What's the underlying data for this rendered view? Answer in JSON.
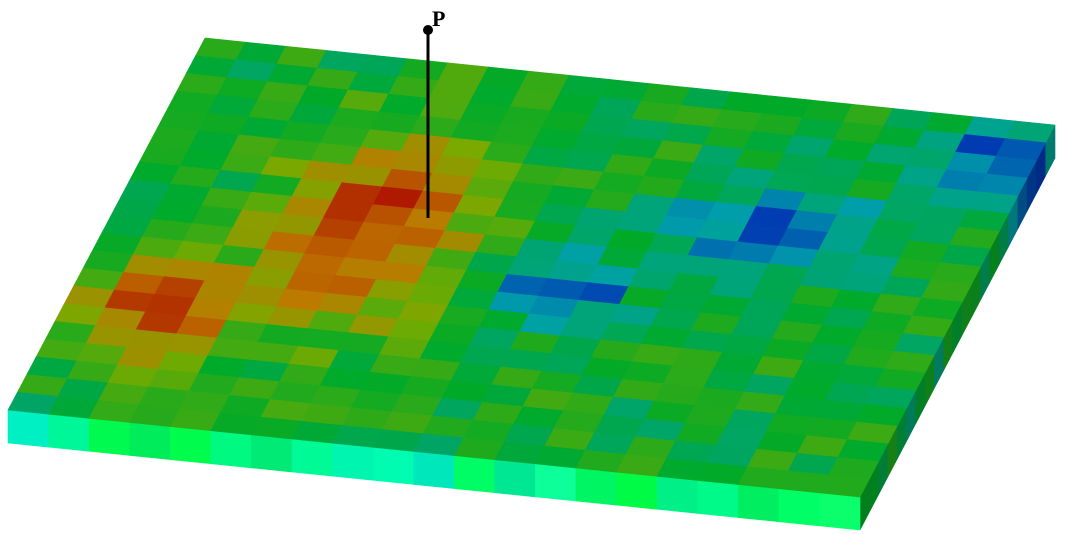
{
  "marker": {
    "label": "P"
  }
}
